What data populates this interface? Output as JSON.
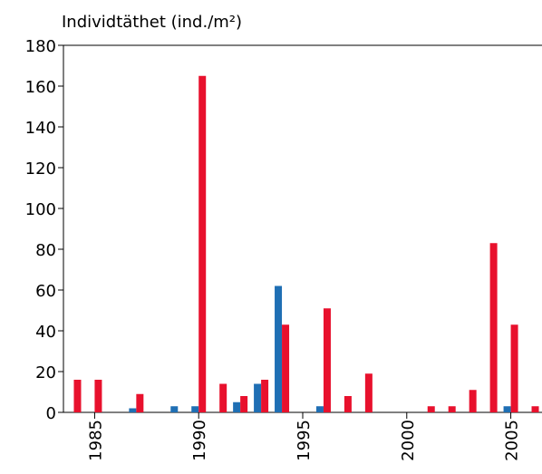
{
  "chart_data": {
    "type": "bar",
    "title": "Individtäthet (ind./m²)",
    "x": [
      1984,
      1985,
      1986,
      1987,
      1988,
      1989,
      1990,
      1991,
      1992,
      1993,
      1994,
      1995,
      1996,
      1997,
      1998,
      1999,
      2000,
      2001,
      2002,
      2003,
      2004,
      2005,
      2006
    ],
    "series": [
      {
        "color": "#1f6fb4",
        "values": [
          null,
          null,
          null,
          2,
          null,
          3,
          3,
          null,
          5,
          14,
          62,
          null,
          3,
          null,
          null,
          null,
          null,
          null,
          null,
          null,
          null,
          3,
          null
        ]
      },
      {
        "color": "#e8112d",
        "values": [
          16,
          16,
          null,
          9,
          null,
          null,
          165,
          14,
          8,
          16,
          43,
          null,
          51,
          8,
          19,
          null,
          null,
          3,
          3,
          11,
          83,
          43,
          3
        ]
      }
    ],
    "xlim": [
      1983.5,
      2006.5
    ],
    "xticks": [
      1985,
      1990,
      1995,
      2000,
      2005
    ],
    "ylim": [
      0,
      180
    ],
    "yticks": [
      0,
      20,
      40,
      60,
      80,
      100,
      120,
      140,
      160,
      180
    ]
  }
}
